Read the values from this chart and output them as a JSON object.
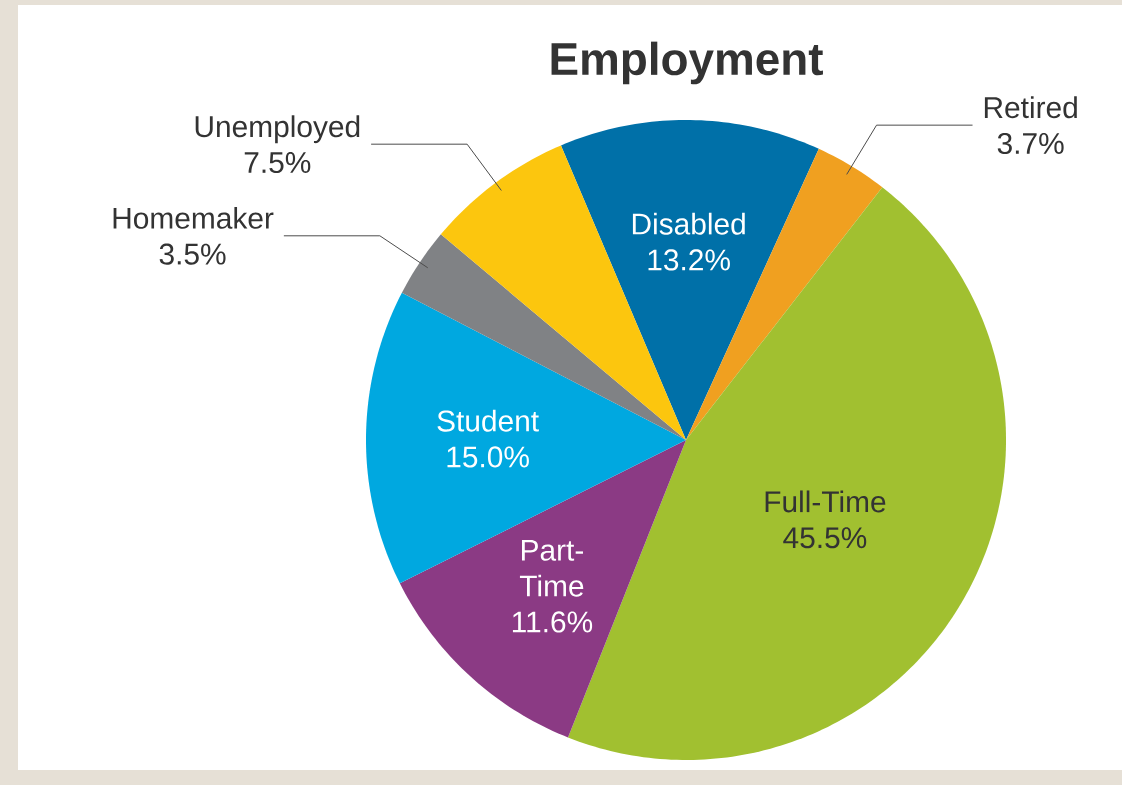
{
  "chart_data": {
    "type": "pie",
    "title": "Employment",
    "categories": [
      "Disabled",
      "Retired",
      "Full-Time",
      "Part-Time",
      "Student",
      "Homemaker",
      "Unemployed"
    ],
    "values": [
      13.2,
      3.7,
      45.5,
      11.6,
      15.0,
      3.5,
      7.5
    ],
    "value_labels": [
      "13.2%",
      "3.7%",
      "45.5%",
      "11.6%",
      "15.0%",
      "3.5%",
      "7.5%"
    ],
    "colors": [
      "#0070a8",
      "#f0a020",
      "#a1c030",
      "#8b3a84",
      "#00a8e0",
      "#808285",
      "#fcc60e"
    ]
  }
}
